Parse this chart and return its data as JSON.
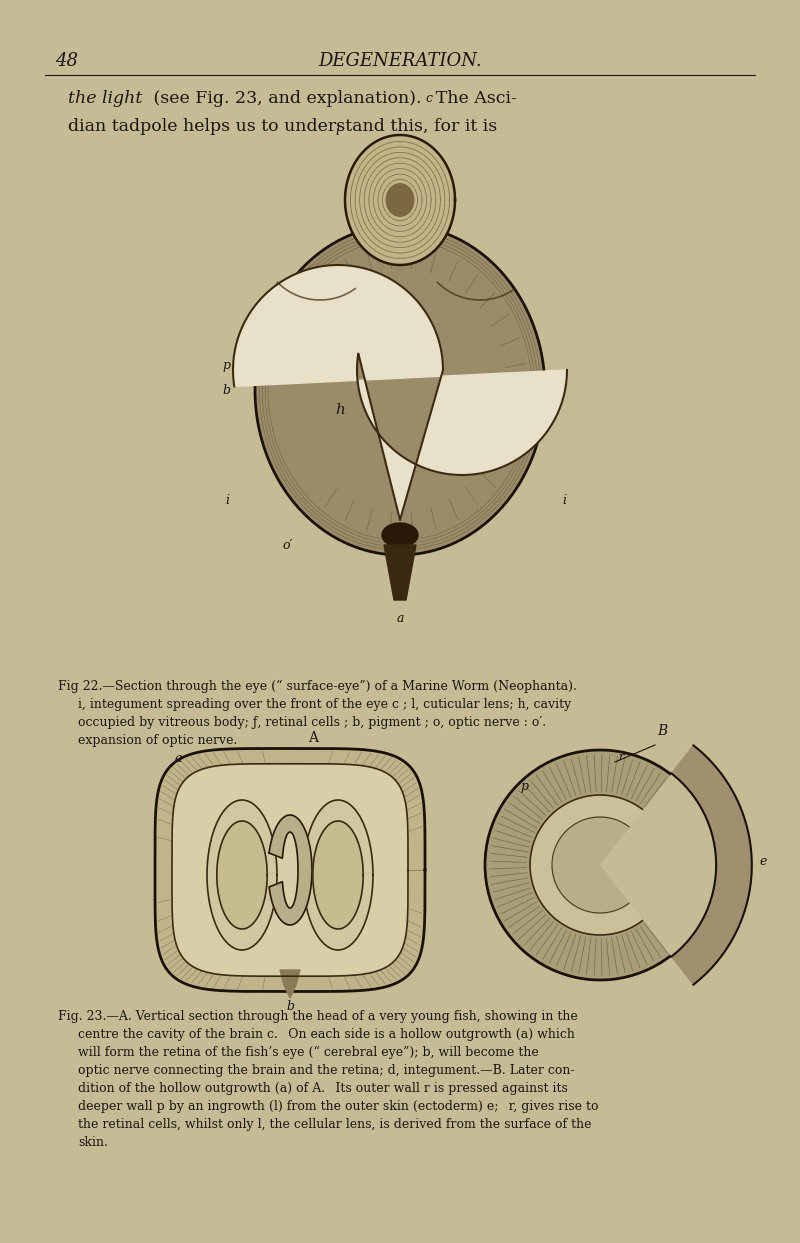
{
  "bg_color": "#c5bc96",
  "page_number": "48",
  "header_title": "DEGENERATION.",
  "text_color": "#1a1510",
  "caption_color": "#1a1510",
  "fig_draw_color": "#2a2010",
  "font_size_header": 13,
  "font_size_intro": 12.5,
  "font_size_caption": 9.0,
  "font_size_label": 9,
  "intro_line1_normal": " (see Fig. 23, and explanation).  The Asci-",
  "intro_line1_italic": "the light",
  "intro_line2": "dian tadpole helps us to understand this, for it is",
  "fig22_cap1": "Fig 22.—Section through the eye (“ surface-eye”) of a Marine Worm (Neophanta).",
  "fig22_cap2": "i, integument spreading over the front of the eye c ; l, cuticular lens; h, cavity",
  "fig22_cap3": "occupied by vitreous body; ƒ, retinal cells ; b, pigment ; o, optic nerve : o′.",
  "fig22_cap4": "expansion of optic nerve.",
  "fig23_cap1": "Fig. 23.—A. Vertical section through the head of a very young fish, showing in the",
  "fig23_cap2": "centre the cavity of the brain c.  On each side is a hollow outgrowth (a) which",
  "fig23_cap3": "will form the retina of the fish’s eye (“ cerebral eye”); b, will become the",
  "fig23_cap4": "optic nerve connecting the brain and the retina; d, integument.—B. Later con-",
  "fig23_cap5": "dition of the hollow outgrowth (a) of A.  Its outer wall r is pressed against its",
  "fig23_cap6": "deeper wall p by an ingrowth (l) from the outer skin (ectoderm) e;  r, gives rise to",
  "fig23_cap7": "the retinal cells, whilst only l, the cellular lens, is derived from the surface of the",
  "fig23_cap8": "skin."
}
